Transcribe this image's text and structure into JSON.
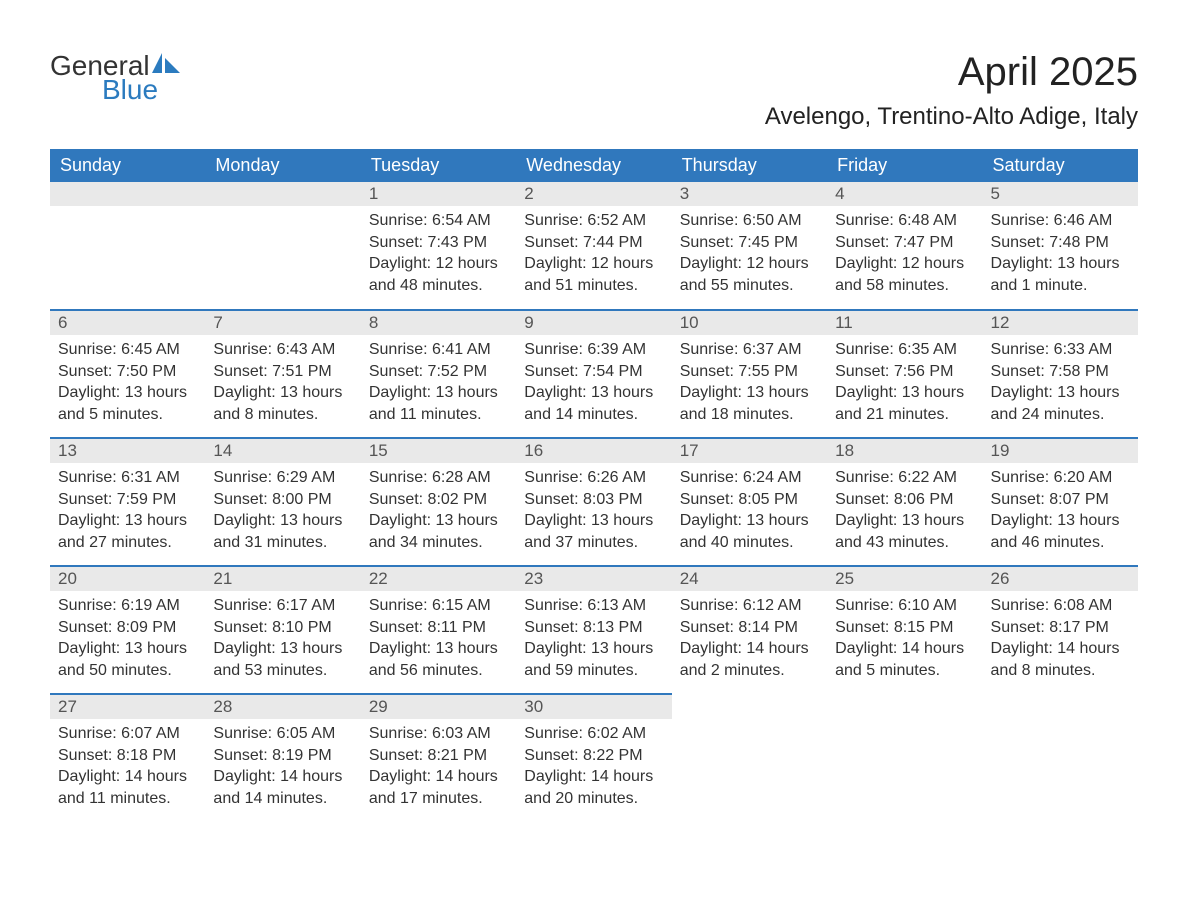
{
  "logo": {
    "text1": "General",
    "text2": "Blue",
    "color1": "#333333",
    "color2": "#2b7bbf",
    "icon_fill": "#2b7bbf"
  },
  "title": "April 2025",
  "location": "Avelengo, Trentino-Alto Adige, Italy",
  "colors": {
    "header_bg": "#3078bd",
    "header_text": "#ffffff",
    "daynum_bg": "#e9e9e9",
    "daynum_text": "#555555",
    "body_text": "#333333",
    "row_border": "#3078bd"
  },
  "fonts": {
    "title_size": 40,
    "location_size": 24,
    "weekday_size": 18,
    "daynum_size": 17,
    "info_size": 16
  },
  "weekdays": [
    "Sunday",
    "Monday",
    "Tuesday",
    "Wednesday",
    "Thursday",
    "Friday",
    "Saturday"
  ],
  "weeks": [
    [
      {
        "day": "",
        "sunrise": "",
        "sunset": "",
        "daylight1": "",
        "daylight2": ""
      },
      {
        "day": "",
        "sunrise": "",
        "sunset": "",
        "daylight1": "",
        "daylight2": ""
      },
      {
        "day": "1",
        "sunrise": "Sunrise: 6:54 AM",
        "sunset": "Sunset: 7:43 PM",
        "daylight1": "Daylight: 12 hours",
        "daylight2": "and 48 minutes."
      },
      {
        "day": "2",
        "sunrise": "Sunrise: 6:52 AM",
        "sunset": "Sunset: 7:44 PM",
        "daylight1": "Daylight: 12 hours",
        "daylight2": "and 51 minutes."
      },
      {
        "day": "3",
        "sunrise": "Sunrise: 6:50 AM",
        "sunset": "Sunset: 7:45 PM",
        "daylight1": "Daylight: 12 hours",
        "daylight2": "and 55 minutes."
      },
      {
        "day": "4",
        "sunrise": "Sunrise: 6:48 AM",
        "sunset": "Sunset: 7:47 PM",
        "daylight1": "Daylight: 12 hours",
        "daylight2": "and 58 minutes."
      },
      {
        "day": "5",
        "sunrise": "Sunrise: 6:46 AM",
        "sunset": "Sunset: 7:48 PM",
        "daylight1": "Daylight: 13 hours",
        "daylight2": "and 1 minute."
      }
    ],
    [
      {
        "day": "6",
        "sunrise": "Sunrise: 6:45 AM",
        "sunset": "Sunset: 7:50 PM",
        "daylight1": "Daylight: 13 hours",
        "daylight2": "and 5 minutes."
      },
      {
        "day": "7",
        "sunrise": "Sunrise: 6:43 AM",
        "sunset": "Sunset: 7:51 PM",
        "daylight1": "Daylight: 13 hours",
        "daylight2": "and 8 minutes."
      },
      {
        "day": "8",
        "sunrise": "Sunrise: 6:41 AM",
        "sunset": "Sunset: 7:52 PM",
        "daylight1": "Daylight: 13 hours",
        "daylight2": "and 11 minutes."
      },
      {
        "day": "9",
        "sunrise": "Sunrise: 6:39 AM",
        "sunset": "Sunset: 7:54 PM",
        "daylight1": "Daylight: 13 hours",
        "daylight2": "and 14 minutes."
      },
      {
        "day": "10",
        "sunrise": "Sunrise: 6:37 AM",
        "sunset": "Sunset: 7:55 PM",
        "daylight1": "Daylight: 13 hours",
        "daylight2": "and 18 minutes."
      },
      {
        "day": "11",
        "sunrise": "Sunrise: 6:35 AM",
        "sunset": "Sunset: 7:56 PM",
        "daylight1": "Daylight: 13 hours",
        "daylight2": "and 21 minutes."
      },
      {
        "day": "12",
        "sunrise": "Sunrise: 6:33 AM",
        "sunset": "Sunset: 7:58 PM",
        "daylight1": "Daylight: 13 hours",
        "daylight2": "and 24 minutes."
      }
    ],
    [
      {
        "day": "13",
        "sunrise": "Sunrise: 6:31 AM",
        "sunset": "Sunset: 7:59 PM",
        "daylight1": "Daylight: 13 hours",
        "daylight2": "and 27 minutes."
      },
      {
        "day": "14",
        "sunrise": "Sunrise: 6:29 AM",
        "sunset": "Sunset: 8:00 PM",
        "daylight1": "Daylight: 13 hours",
        "daylight2": "and 31 minutes."
      },
      {
        "day": "15",
        "sunrise": "Sunrise: 6:28 AM",
        "sunset": "Sunset: 8:02 PM",
        "daylight1": "Daylight: 13 hours",
        "daylight2": "and 34 minutes."
      },
      {
        "day": "16",
        "sunrise": "Sunrise: 6:26 AM",
        "sunset": "Sunset: 8:03 PM",
        "daylight1": "Daylight: 13 hours",
        "daylight2": "and 37 minutes."
      },
      {
        "day": "17",
        "sunrise": "Sunrise: 6:24 AM",
        "sunset": "Sunset: 8:05 PM",
        "daylight1": "Daylight: 13 hours",
        "daylight2": "and 40 minutes."
      },
      {
        "day": "18",
        "sunrise": "Sunrise: 6:22 AM",
        "sunset": "Sunset: 8:06 PM",
        "daylight1": "Daylight: 13 hours",
        "daylight2": "and 43 minutes."
      },
      {
        "day": "19",
        "sunrise": "Sunrise: 6:20 AM",
        "sunset": "Sunset: 8:07 PM",
        "daylight1": "Daylight: 13 hours",
        "daylight2": "and 46 minutes."
      }
    ],
    [
      {
        "day": "20",
        "sunrise": "Sunrise: 6:19 AM",
        "sunset": "Sunset: 8:09 PM",
        "daylight1": "Daylight: 13 hours",
        "daylight2": "and 50 minutes."
      },
      {
        "day": "21",
        "sunrise": "Sunrise: 6:17 AM",
        "sunset": "Sunset: 8:10 PM",
        "daylight1": "Daylight: 13 hours",
        "daylight2": "and 53 minutes."
      },
      {
        "day": "22",
        "sunrise": "Sunrise: 6:15 AM",
        "sunset": "Sunset: 8:11 PM",
        "daylight1": "Daylight: 13 hours",
        "daylight2": "and 56 minutes."
      },
      {
        "day": "23",
        "sunrise": "Sunrise: 6:13 AM",
        "sunset": "Sunset: 8:13 PM",
        "daylight1": "Daylight: 13 hours",
        "daylight2": "and 59 minutes."
      },
      {
        "day": "24",
        "sunrise": "Sunrise: 6:12 AM",
        "sunset": "Sunset: 8:14 PM",
        "daylight1": "Daylight: 14 hours",
        "daylight2": "and 2 minutes."
      },
      {
        "day": "25",
        "sunrise": "Sunrise: 6:10 AM",
        "sunset": "Sunset: 8:15 PM",
        "daylight1": "Daylight: 14 hours",
        "daylight2": "and 5 minutes."
      },
      {
        "day": "26",
        "sunrise": "Sunrise: 6:08 AM",
        "sunset": "Sunset: 8:17 PM",
        "daylight1": "Daylight: 14 hours",
        "daylight2": "and 8 minutes."
      }
    ],
    [
      {
        "day": "27",
        "sunrise": "Sunrise: 6:07 AM",
        "sunset": "Sunset: 8:18 PM",
        "daylight1": "Daylight: 14 hours",
        "daylight2": "and 11 minutes."
      },
      {
        "day": "28",
        "sunrise": "Sunrise: 6:05 AM",
        "sunset": "Sunset: 8:19 PM",
        "daylight1": "Daylight: 14 hours",
        "daylight2": "and 14 minutes."
      },
      {
        "day": "29",
        "sunrise": "Sunrise: 6:03 AM",
        "sunset": "Sunset: 8:21 PM",
        "daylight1": "Daylight: 14 hours",
        "daylight2": "and 17 minutes."
      },
      {
        "day": "30",
        "sunrise": "Sunrise: 6:02 AM",
        "sunset": "Sunset: 8:22 PM",
        "daylight1": "Daylight: 14 hours",
        "daylight2": "and 20 minutes."
      },
      {
        "day": "",
        "sunrise": "",
        "sunset": "",
        "daylight1": "",
        "daylight2": ""
      },
      {
        "day": "",
        "sunrise": "",
        "sunset": "",
        "daylight1": "",
        "daylight2": ""
      },
      {
        "day": "",
        "sunrise": "",
        "sunset": "",
        "daylight1": "",
        "daylight2": ""
      }
    ]
  ]
}
